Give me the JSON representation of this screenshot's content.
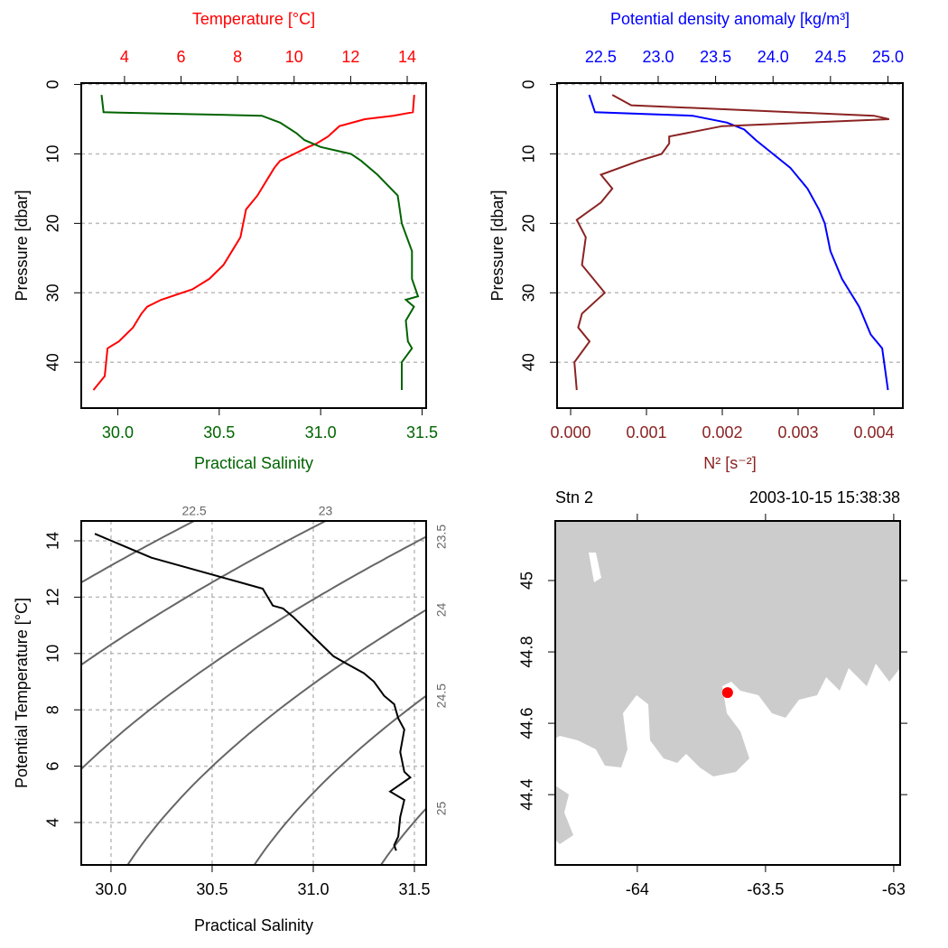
{
  "chart_data": [
    {
      "type": "profile",
      "ylabel": "Pressure [dbar]",
      "ylim": [
        -0.2,
        46.6
      ],
      "y_reversed": true,
      "yticks": [
        0,
        10,
        20,
        30,
        40
      ],
      "grid": true,
      "top_axis": {
        "label": "Temperature [°C]",
        "color": "#ff0000",
        "lim": [
          2.47,
          14.67
        ],
        "ticks": [
          4,
          6,
          8,
          10,
          12,
          14
        ]
      },
      "bottom_axis": {
        "label": "Practical Salinity",
        "color": "#006400",
        "lim": [
          29.82,
          31.52
        ],
        "ticks": [
          {
            "value": 30,
            "label": "30.0"
          },
          {
            "value": 30.5,
            "label": "30.5"
          },
          {
            "value": 31,
            "label": "31.0"
          },
          {
            "value": 31.5,
            "label": "31.5"
          }
        ]
      },
      "series": [
        {
          "axis": "top",
          "color": "#ff0000",
          "pressure": [
            1.5,
            4,
            4.5,
            5,
            6,
            7.5,
            8.5,
            9,
            10,
            11,
            12,
            14,
            16,
            18,
            20,
            22,
            24,
            26,
            28,
            29.5,
            31,
            32,
            33,
            35,
            37,
            38,
            42,
            44
          ],
          "values": [
            14.25,
            14.2,
            13.5,
            12.5,
            11.6,
            11.2,
            10.8,
            10.5,
            10.0,
            9.5,
            9.3,
            9.0,
            8.7,
            8.3,
            8.2,
            8.1,
            7.8,
            7.5,
            7.0,
            6.4,
            5.3,
            4.8,
            4.6,
            4.3,
            3.8,
            3.4,
            3.3,
            2.9
          ]
        },
        {
          "axis": "bottom",
          "color": "#006400",
          "pressure": [
            1.5,
            4,
            4.5,
            5.5,
            7,
            8,
            9,
            10,
            11,
            13,
            16,
            18,
            20,
            24,
            28,
            30.5,
            31,
            32,
            34,
            37,
            38,
            40,
            44
          ],
          "values": [
            29.92,
            29.93,
            30.71,
            30.8,
            30.88,
            30.92,
            31.0,
            31.15,
            31.2,
            31.28,
            31.38,
            31.39,
            31.4,
            31.45,
            31.45,
            31.48,
            31.42,
            31.46,
            31.42,
            31.43,
            31.45,
            31.4,
            31.4
          ]
        }
      ]
    },
    {
      "type": "profile",
      "ylabel": "Pressure [dbar]",
      "ylim": [
        -0.2,
        46.6
      ],
      "y_reversed": true,
      "yticks": [
        0,
        10,
        20,
        30,
        40
      ],
      "grid": true,
      "top_axis": {
        "label": "Potential density anomaly [kg/m³]",
        "color": "#0000ff",
        "lim": [
          22.12,
          25.13
        ],
        "ticks": [
          22.5,
          {
            "value": 23,
            "label": "23.0"
          },
          23.5,
          {
            "value": 24,
            "label": "24.0"
          },
          24.5,
          {
            "value": 25,
            "label": "25.0"
          }
        ]
      },
      "bottom_axis": {
        "label": "N² [s⁻²]",
        "color": "#8b2323",
        "lim": [
          -0.000179,
          0.004381
        ],
        "ticks": [
          {
            "value": 0,
            "label": "0.000"
          },
          {
            "value": 0.001,
            "label": "0.001"
          },
          {
            "value": 0.002,
            "label": "0.002"
          },
          {
            "value": 0.003,
            "label": "0.003"
          },
          {
            "value": 0.004,
            "label": "0.004"
          }
        ]
      },
      "series": [
        {
          "axis": "top",
          "color": "#0000ff",
          "pressure": [
            1.5,
            4,
            4.5,
            5.5,
            6.5,
            8,
            10,
            12,
            15,
            18,
            20,
            24,
            28,
            32,
            36,
            38,
            44
          ],
          "values": [
            22.4,
            22.45,
            23.3,
            23.6,
            23.75,
            23.85,
            24.0,
            24.15,
            24.3,
            24.4,
            24.45,
            24.5,
            24.6,
            24.75,
            24.85,
            24.95,
            25.0
          ]
        },
        {
          "axis": "bottom",
          "color": "#8b2323",
          "pressure": [
            1.5,
            3,
            4.5,
            5,
            6,
            7.5,
            8.5,
            10,
            11,
            13,
            15,
            17,
            19.5,
            22,
            26,
            30,
            33,
            35,
            37,
            40,
            44
          ],
          "values": [
            0.00055,
            0.0008,
            0.004,
            0.0042,
            0.002,
            0.0013,
            0.0013,
            0.0012,
            0.0009,
            0.0004,
            0.00055,
            0.0004,
            8e-05,
            0.0002,
            0.00015,
            0.00045,
            0.00015,
            0.0001,
            0.00025,
            5e-05,
            8e-05
          ]
        }
      ]
    },
    {
      "type": "ts",
      "xlabel": "Practical Salinity",
      "ylabel": "Potential Temperature [°C]",
      "xlim": [
        29.853,
        31.558
      ],
      "ylim": [
        2.494,
        14.705
      ],
      "xticks": [
        {
          "value": 30,
          "label": "30.0"
        },
        {
          "value": 30.5,
          "label": "30.5"
        },
        {
          "value": 31,
          "label": "31.0"
        },
        {
          "value": 31.5,
          "label": "31.5"
        }
      ],
      "yticks": [
        4,
        6,
        8,
        10,
        12,
        14
      ],
      "grid": true,
      "isopycnals": [
        22.5,
        23,
        23.5,
        24,
        24.5,
        25
      ],
      "isopycnal_color": "#666666",
      "series": [
        {
          "color": "#000000",
          "x": [
            29.92,
            30.2,
            30.45,
            30.75,
            30.8,
            30.85,
            30.9,
            31.0,
            31.1,
            31.15,
            31.25,
            31.3,
            31.35,
            31.4,
            31.42,
            31.45,
            31.43,
            31.45,
            31.48,
            31.38,
            31.45,
            31.43,
            31.42,
            31.4,
            31.41
          ],
          "values": [
            14.25,
            13.4,
            12.9,
            12.3,
            11.7,
            11.6,
            11.3,
            10.6,
            9.9,
            9.7,
            9.3,
            9.0,
            8.5,
            8.2,
            7.7,
            7.3,
            6.5,
            5.8,
            5.6,
            5.1,
            4.8,
            4.2,
            3.5,
            3.2,
            3.0
          ]
        }
      ]
    },
    {
      "type": "map",
      "title_left": "Stn 2",
      "title_right": "2003-10-15 15:38:38",
      "xlim": [
        -64.32,
        -62.975
      ],
      "ylim": [
        44.203,
        45.167
      ],
      "xticks": [
        -64,
        -63.5,
        -63
      ],
      "yticks": [
        44.4,
        44.6,
        44.8,
        45
      ],
      "land_color": "#cccccc",
      "station": {
        "x": -63.648,
        "y": 44.686,
        "color": "#ff0000"
      }
    }
  ]
}
